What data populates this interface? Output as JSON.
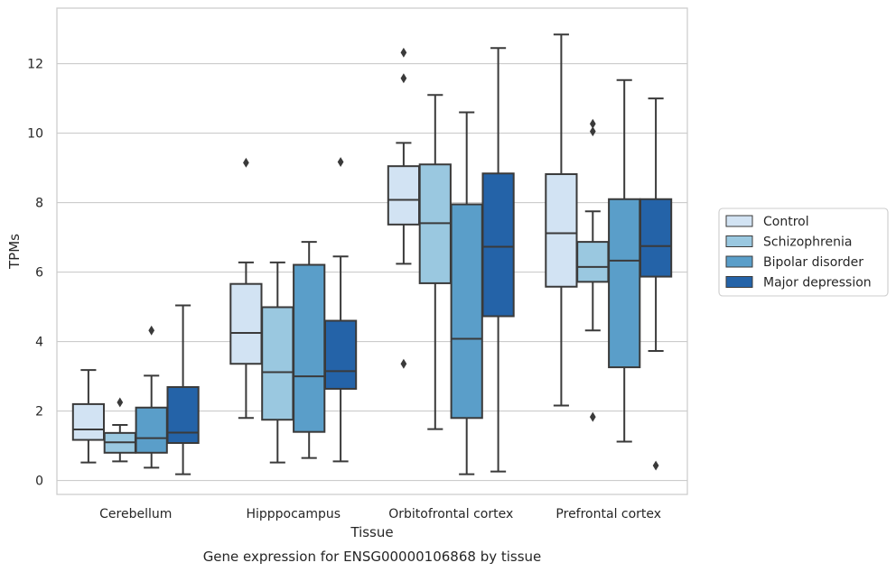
{
  "chart_data": {
    "type": "box",
    "xlabel": "Tissue",
    "ylabel": "TPMs",
    "caption": "Gene expression for ENSG00000106868 by tissue",
    "ylim": [
      -0.4,
      13.6
    ],
    "yticks": [
      0,
      2,
      4,
      6,
      8,
      10,
      12
    ],
    "grid": "horizontal",
    "legend_position": "right",
    "categories": [
      "Cerebellum",
      "Hipppocampus",
      "Orbitofrontal cortex",
      "Prefrontal cortex"
    ],
    "series": [
      {
        "name": "Control",
        "color": "#d2e3f3",
        "boxes": [
          {
            "whisker_low": 0.52,
            "q1": 1.17,
            "median": 1.47,
            "q3": 2.2,
            "whisker_high": 3.18,
            "outliers": []
          },
          {
            "whisker_low": 1.8,
            "q1": 3.36,
            "median": 4.25,
            "q3": 5.66,
            "whisker_high": 6.28,
            "outliers": [
              9.15
            ]
          },
          {
            "whisker_low": 6.24,
            "q1": 7.37,
            "median": 8.08,
            "q3": 9.05,
            "whisker_high": 9.72,
            "outliers": [
              12.32,
              11.58,
              3.36
            ]
          },
          {
            "whisker_low": 2.16,
            "q1": 5.58,
            "median": 7.12,
            "q3": 8.82,
            "whisker_high": 12.84,
            "outliers": []
          }
        ]
      },
      {
        "name": "Schizophrenia",
        "color": "#9ac8e0",
        "boxes": [
          {
            "whisker_low": 0.55,
            "q1": 0.8,
            "median": 1.1,
            "q3": 1.37,
            "whisker_high": 1.6,
            "outliers": [
              2.25
            ]
          },
          {
            "whisker_low": 0.52,
            "q1": 1.75,
            "median": 3.12,
            "q3": 4.99,
            "whisker_high": 6.28,
            "outliers": []
          },
          {
            "whisker_low": 1.48,
            "q1": 5.68,
            "median": 7.41,
            "q3": 9.1,
            "whisker_high": 11.1,
            "outliers": []
          },
          {
            "whisker_low": 4.32,
            "q1": 5.72,
            "median": 6.15,
            "q3": 6.87,
            "whisker_high": 7.75,
            "outliers": [
              10.27,
              10.05,
              1.83
            ]
          }
        ]
      },
      {
        "name": "Bipolar disorder",
        "color": "#5a9ec9",
        "boxes": [
          {
            "whisker_low": 0.37,
            "q1": 0.8,
            "median": 1.22,
            "q3": 2.1,
            "whisker_high": 3.02,
            "outliers": [
              4.32
            ]
          },
          {
            "whisker_low": 0.65,
            "q1": 1.4,
            "median": 3.0,
            "q3": 6.21,
            "whisker_high": 6.87,
            "outliers": []
          },
          {
            "whisker_low": 0.18,
            "q1": 1.8,
            "median": 4.08,
            "q3": 7.95,
            "whisker_high": 10.6,
            "outliers": []
          },
          {
            "whisker_low": 1.12,
            "q1": 3.26,
            "median": 6.33,
            "q3": 8.1,
            "whisker_high": 11.53,
            "outliers": []
          }
        ]
      },
      {
        "name": "Major depression",
        "color": "#2463a8",
        "boxes": [
          {
            "whisker_low": 0.18,
            "q1": 1.08,
            "median": 1.38,
            "q3": 2.69,
            "whisker_high": 5.04,
            "outliers": []
          },
          {
            "whisker_low": 0.55,
            "q1": 2.64,
            "median": 3.15,
            "q3": 4.6,
            "whisker_high": 6.45,
            "outliers": [
              9.17
            ]
          },
          {
            "whisker_low": 0.26,
            "q1": 4.73,
            "median": 6.73,
            "q3": 8.84,
            "whisker_high": 12.45,
            "outliers": []
          },
          {
            "whisker_low": 3.73,
            "q1": 5.87,
            "median": 6.75,
            "q3": 8.1,
            "whisker_high": 11.0,
            "outliers": [
              0.43
            ]
          }
        ]
      }
    ]
  }
}
